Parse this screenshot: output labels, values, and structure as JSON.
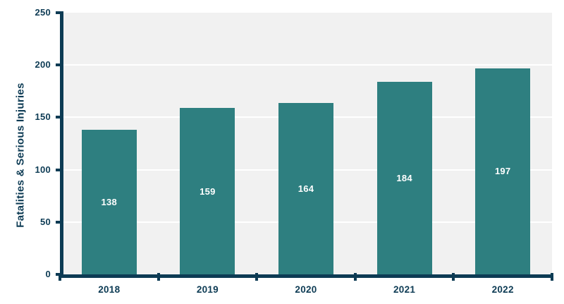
{
  "chart_data": {
    "type": "bar",
    "categories": [
      "2018",
      "2019",
      "2020",
      "2021",
      "2022"
    ],
    "values": [
      138,
      159,
      164,
      184,
      197
    ],
    "title": "",
    "xlabel": "",
    "ylabel": "Fatalities & Serious Injuries",
    "ylim": [
      0,
      250
    ],
    "yticks": [
      0,
      50,
      100,
      150,
      200,
      250
    ],
    "grid": true,
    "legend": false,
    "colors": {
      "bar": "#2e7f80",
      "bar_label": "#ffffff",
      "axis": "#0d3b54",
      "tick_label": "#0d3b54",
      "plot_background": "#f1f1f1",
      "gridline": "#ffffff",
      "page_background": "#ffffff"
    }
  }
}
